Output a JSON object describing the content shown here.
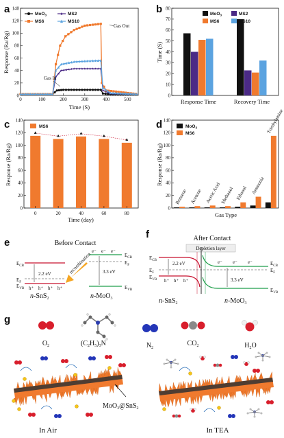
{
  "panels": {
    "a": {
      "letter": "a",
      "xlabel": "Time (S)",
      "ylabel": "Response (Ra/Rg)",
      "xticks": [
        "0",
        "100",
        "200",
        "300",
        "400",
        "500"
      ],
      "yticks": [
        "0",
        "20",
        "40",
        "60",
        "80",
        "100",
        "120",
        "140"
      ],
      "annot_in": "Gas In",
      "annot_out": "Gas Out"
    },
    "b": {
      "letter": "b",
      "ylabel": "Time (S)",
      "yticks": [
        "0",
        "10",
        "20",
        "30",
        "40",
        "50",
        "60",
        "70",
        "80"
      ]
    },
    "c": {
      "letter": "c",
      "xlabel": "Time (day)",
      "ylabel": "Response (Ra/Rg)",
      "yticks": [
        "0",
        "20",
        "40",
        "60",
        "80",
        "100",
        "120",
        "140"
      ]
    },
    "d": {
      "letter": "d",
      "xlabel": "Gas Type",
      "ylabel": "Response (Ra/Rg)",
      "yticks": [
        "0",
        "20",
        "40",
        "60",
        "80",
        "100",
        "120",
        "140"
      ]
    },
    "e": {
      "letter": "e",
      "title": "Before Contact",
      "ecb": "E",
      "ecb_sub": "CB",
      "ef": "E",
      "ef_sub": "F",
      "evb": "E",
      "evb_sub": "VB",
      "gap_left": "2.2 eV",
      "gap_right": "3.3 eV",
      "recombination": "recombination",
      "left_label_n": "n",
      "left_label": "-SnS",
      "left_sub": "2",
      "right_label_n": "n",
      "right_label": "-MoO",
      "right_sub": "3",
      "electron": "e⁻",
      "hole": "h⁺"
    },
    "f": {
      "letter": "f",
      "title": "After Contact",
      "depletion": "Depletion layer",
      "gap_left": "2.2 eV",
      "gap_right": "3.3 eV"
    },
    "g": {
      "letter": "g",
      "molecules": [
        {
          "formula": "O",
          "sub": "2"
        },
        {
          "formula": "(C",
          "sub": "2",
          "rest": "H",
          "sub2": "5",
          "rest2": ")",
          "sub3": "3",
          "rest3": "N"
        },
        {
          "formula": "N",
          "sub": "2"
        },
        {
          "formula": "CO",
          "sub": "2"
        },
        {
          "formula": "H",
          "sub": "2",
          "rest": "O"
        }
      ],
      "composite": "MoO",
      "composite_sub": "3",
      "composite_rest": "@SnS",
      "composite_sub2": "2",
      "in_air": "In Air",
      "in_tea": "In TEA"
    }
  },
  "chart_data": [
    {
      "panel": "a",
      "type": "line",
      "title": "",
      "xlabel": "Time (S)",
      "ylabel": "Response (Ra/Rg)",
      "xlim": [
        0,
        550
      ],
      "ylim": [
        0,
        140
      ],
      "legend_position": "top",
      "series": [
        {
          "name": "MoO3",
          "color": "#111111",
          "marker": "circle",
          "points": [
            [
              0,
              2
            ],
            [
              150,
              2
            ],
            [
              170,
              8
            ],
            [
              200,
              9
            ],
            [
              250,
              9
            ],
            [
              300,
              9
            ],
            [
              375,
              9
            ],
            [
              385,
              3
            ],
            [
              420,
              2
            ],
            [
              550,
              2
            ]
          ]
        },
        {
          "name": "MS2",
          "color": "#4b2a86",
          "marker": "star",
          "points": [
            [
              0,
              2
            ],
            [
              150,
              2
            ],
            [
              165,
              30
            ],
            [
              190,
              40
            ],
            [
              250,
              43
            ],
            [
              300,
              43
            ],
            [
              375,
              43
            ],
            [
              385,
              8
            ],
            [
              420,
              3
            ],
            [
              550,
              2
            ]
          ]
        },
        {
          "name": "MS6",
          "color": "#f07a2e",
          "marker": "square",
          "points": [
            [
              0,
              2
            ],
            [
              150,
              2
            ],
            [
              165,
              50
            ],
            [
              185,
              80
            ],
            [
              210,
              95
            ],
            [
              250,
              105
            ],
            [
              300,
              112
            ],
            [
              375,
              115
            ],
            [
              380,
              20
            ],
            [
              400,
              8
            ],
            [
              550,
              2
            ]
          ]
        },
        {
          "name": "MS10",
          "color": "#5ba3e0",
          "marker": "triangle",
          "points": [
            [
              0,
              2
            ],
            [
              150,
              2
            ],
            [
              165,
              40
            ],
            [
              190,
              50
            ],
            [
              250,
              54
            ],
            [
              300,
              55
            ],
            [
              375,
              56
            ],
            [
              385,
              12
            ],
            [
              420,
              4
            ],
            [
              550,
              2
            ]
          ]
        }
      ]
    },
    {
      "panel": "b",
      "type": "bar",
      "title": "",
      "xlabel": "",
      "ylabel": "Time (S)",
      "ylim": [
        0,
        80
      ],
      "categories": [
        "Response Time",
        "Recovery Time"
      ],
      "series": [
        {
          "name": "MoO3",
          "color": "#111111",
          "values": [
            57,
            70
          ]
        },
        {
          "name": "MS2",
          "color": "#4b2a86",
          "values": [
            40,
            23
          ]
        },
        {
          "name": "MS6",
          "color": "#f07a2e",
          "values": [
            51,
            21
          ]
        },
        {
          "name": "MS10",
          "color": "#5ba3e0",
          "values": [
            52,
            32
          ]
        }
      ]
    },
    {
      "panel": "c",
      "type": "bar",
      "title": "",
      "xlabel": "Time (day)",
      "ylabel": "Response (Ra/Rg)",
      "ylim": [
        0,
        140
      ],
      "categories": [
        "0",
        "20",
        "40",
        "60",
        "80"
      ],
      "series": [
        {
          "name": "MS6",
          "color": "#f07a2e",
          "values": [
            115,
            110,
            114,
            110,
            104
          ]
        }
      ]
    },
    {
      "panel": "d",
      "type": "bar",
      "title": "",
      "xlabel": "Gas Type",
      "ylabel": "Response (Ra/Rg)",
      "ylim": [
        0,
        140
      ],
      "categories": [
        "Benzene",
        "Acetone",
        "Acetic Acid",
        "Methanol",
        "Ethanol",
        "Ammonia",
        "Triethylamine"
      ],
      "series": [
        {
          "name": "MoO3",
          "color": "#111111",
          "values": [
            1,
            1,
            1,
            1,
            2,
            4,
            9
          ]
        },
        {
          "name": "MS6",
          "color": "#f07a2e",
          "values": [
            2,
            3,
            4,
            3,
            9,
            18,
            115
          ]
        }
      ]
    }
  ]
}
